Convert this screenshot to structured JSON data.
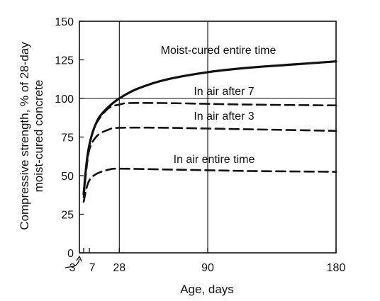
{
  "chart_data": {
    "type": "line",
    "title": "",
    "xlabel": "Age, days",
    "ylabel_lines": [
      "Compressive strength, % of 28-day",
      "moist-cured concrete"
    ],
    "xlim": [
      0,
      180
    ],
    "ylim": [
      0,
      150
    ],
    "x_ticks": [
      3,
      7,
      28,
      90,
      180
    ],
    "y_ticks": [
      0,
      25,
      50,
      75,
      100,
      125,
      150
    ],
    "grid": {
      "vertical": [
        28,
        90
      ],
      "horizontal": [
        100
      ]
    },
    "legend": "none",
    "series": [
      {
        "name": "Moist-cured entire time",
        "style": "solid",
        "x": [
          3,
          5,
          7,
          10,
          14,
          21,
          28,
          40,
          60,
          90,
          120,
          150,
          180
        ],
        "y": [
          38,
          58,
          70,
          80,
          88,
          95,
          100,
          106,
          112,
          117,
          120,
          122,
          124
        ]
      },
      {
        "name": "In air after 7",
        "style": "dashed",
        "x": [
          3,
          5,
          7,
          10,
          14,
          21,
          28,
          35,
          60,
          90,
          120,
          180
        ],
        "y": [
          38,
          58,
          70,
          80,
          87,
          94,
          96,
          97,
          97,
          96.5,
          96,
          95.5
        ]
      },
      {
        "name": "In air after 3",
        "style": "dashed",
        "x": [
          3,
          5,
          7,
          10,
          14,
          21,
          28,
          60,
          90,
          120,
          180
        ],
        "y": [
          36,
          55,
          67,
          73,
          77,
          80,
          81,
          81,
          80.5,
          80,
          79
        ]
      },
      {
        "name": "In air entire time",
        "style": "dashed",
        "x": [
          3,
          5,
          7,
          10,
          14,
          21,
          28,
          60,
          90,
          120,
          180
        ],
        "y": [
          33,
          42,
          47,
          50,
          52,
          54,
          54.5,
          54,
          53.5,
          53,
          52.5
        ]
      }
    ]
  }
}
